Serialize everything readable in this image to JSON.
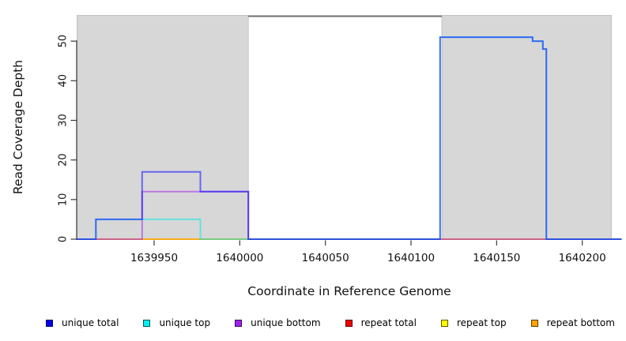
{
  "chart_data": {
    "type": "line",
    "subtype": "step-coverage",
    "xlabel": "Coordinate in Reference Genome",
    "ylabel": "Read Coverage Depth",
    "xlim": [
      1639905,
      1640223
    ],
    "ylim": [
      0,
      56.4
    ],
    "x_ticks": [
      1639950,
      1640000,
      1640050,
      1640100,
      1640150,
      1640200
    ],
    "y_ticks": [
      0,
      10,
      20,
      30,
      40,
      50
    ],
    "grid": false,
    "shaded_regions": [
      {
        "name": "shaded-region-1",
        "start": 1639905,
        "end": 1640005,
        "fill": "#d7d7d7",
        "border": "#b9b9b9"
      },
      {
        "name": "shaded-region-2",
        "start": 1640118,
        "end": 1640217,
        "fill": "#d7d7d7",
        "border": "#b9b9b9"
      }
    ],
    "gap_top_line": {
      "start": 1640005,
      "end": 1640118,
      "color": "#6e6e6e"
    },
    "line_opacity": 0.52,
    "line_width": 2,
    "series": [
      {
        "name": "repeat total",
        "color": "#EE0000",
        "points": [
          [
            1639905,
            0
          ],
          [
            1640223,
            0
          ]
        ]
      },
      {
        "name": "repeat top",
        "color": "#FFFF00",
        "points": [
          [
            1639905,
            0
          ],
          [
            1640223,
            0
          ]
        ]
      },
      {
        "name": "repeat bottom",
        "color": "#FFA500",
        "points": [
          [
            1639905,
            0
          ],
          [
            1640223,
            0
          ]
        ]
      },
      {
        "name": "unique bottom",
        "color": "#A020F0",
        "points": [
          [
            1639905,
            0
          ],
          [
            1639943,
            0
          ],
          [
            1639943,
            12
          ],
          [
            1640005,
            12
          ],
          [
            1640005,
            0
          ],
          [
            1640223,
            0
          ]
        ]
      },
      {
        "name": "unique top",
        "color": "#00E6E6",
        "points": [
          [
            1639905,
            0
          ],
          [
            1639916,
            0
          ],
          [
            1639916,
            5
          ],
          [
            1639977,
            5
          ],
          [
            1639977,
            0
          ],
          [
            1640117,
            0
          ],
          [
            1640117,
            51
          ],
          [
            1640171,
            51
          ],
          [
            1640171,
            50
          ],
          [
            1640177,
            50
          ],
          [
            1640177,
            48
          ],
          [
            1640179,
            48
          ],
          [
            1640179,
            0
          ],
          [
            1640223,
            0
          ]
        ]
      },
      {
        "name": "unique total",
        "color": "#0000FF",
        "points": [
          [
            1639905,
            0
          ],
          [
            1639916,
            0
          ],
          [
            1639916,
            5
          ],
          [
            1639943,
            5
          ],
          [
            1639943,
            17
          ],
          [
            1639977,
            17
          ],
          [
            1639977,
            12
          ],
          [
            1640005,
            12
          ],
          [
            1640005,
            0
          ],
          [
            1640117,
            0
          ],
          [
            1640117,
            51
          ],
          [
            1640171,
            51
          ],
          [
            1640171,
            50
          ],
          [
            1640177,
            50
          ],
          [
            1640177,
            48
          ],
          [
            1640179,
            48
          ],
          [
            1640179,
            0
          ],
          [
            1640223,
            0
          ]
        ]
      }
    ],
    "legend": [
      {
        "label": "unique total",
        "color": "#0000EE"
      },
      {
        "label": "unique top",
        "color": "#00EEEE"
      },
      {
        "label": "unique bottom",
        "color": "#A020F0"
      },
      {
        "label": "repeat total",
        "color": "#EE0000"
      },
      {
        "label": "repeat top",
        "color": "#FFFF00"
      },
      {
        "label": "repeat bottom",
        "color": "#FFA500"
      }
    ]
  }
}
